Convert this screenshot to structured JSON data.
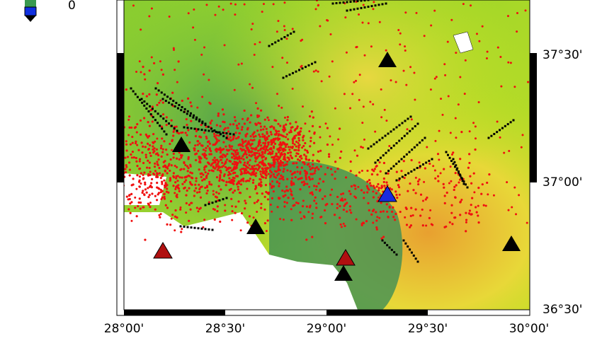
{
  "colorbar": {
    "label": "0"
  },
  "axes": {
    "x_labels": [
      "28°00'",
      "28°30'",
      "29°00'",
      "29°30'",
      "30°00'"
    ],
    "y_labels": [
      "37°30'",
      "37°00'",
      "36°30'"
    ]
  }
}
